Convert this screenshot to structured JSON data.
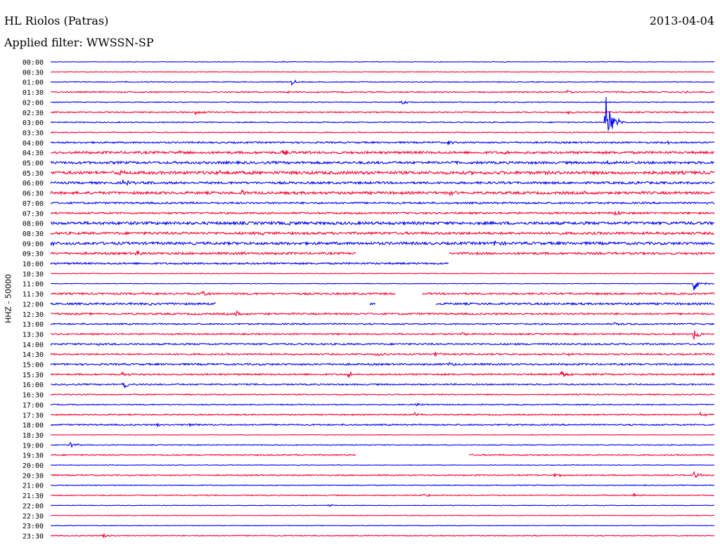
{
  "header": {
    "station": "HL Riolos (Patras)",
    "date": "2013-04-04",
    "filter": "Applied filter: WWSSN-SP",
    "channel_label": "HHZ - 50000"
  },
  "colors": {
    "even_rows": "#0000ff",
    "odd_rows": "#ff0033",
    "background": "#ffffff"
  },
  "chart_data": {
    "type": "line",
    "subtype": "helicorder",
    "row_labels": [
      "00:00",
      "00:30",
      "01:00",
      "01:30",
      "02:00",
      "02:30",
      "03:00",
      "03:30",
      "04:00",
      "04:30",
      "05:00",
      "05:30",
      "06:00",
      "06:30",
      "07:00",
      "07:30",
      "08:00",
      "08:30",
      "09:00",
      "09:30",
      "10:00",
      "10:30",
      "11:00",
      "11:30",
      "12:00",
      "12:30",
      "13:00",
      "13:30",
      "14:00",
      "14:30",
      "15:00",
      "15:30",
      "16:00",
      "16:30",
      "17:00",
      "17:30",
      "18:00",
      "18:30",
      "19:00",
      "19:30",
      "20:00",
      "20:30",
      "21:00",
      "21:30",
      "22:00",
      "22:30",
      "23:00",
      "23:30"
    ],
    "row_colors": [
      "blue",
      "red"
    ],
    "noise_level": [
      0.3,
      0.3,
      0.4,
      0.6,
      0.4,
      0.6,
      0.5,
      0.5,
      0.8,
      1.2,
      1.2,
      1.5,
      1.1,
      1.3,
      0.9,
      0.9,
      1.4,
      1.2,
      1.3,
      1.1,
      0.9,
      0.0,
      0.0,
      0.9,
      1.0,
      0.9,
      0.7,
      0.7,
      0.8,
      0.8,
      0.9,
      0.8,
      0.7,
      0.6,
      0.5,
      0.6,
      0.7,
      0.3,
      0.4,
      0.6,
      0.3,
      0.6,
      0.4,
      0.5,
      0.3,
      0.3,
      0.3,
      0.5
    ],
    "events": [
      {
        "row": 0,
        "pos": 0.35,
        "amp": 1.0
      },
      {
        "row": 0,
        "pos": 0.68,
        "amp": 0.8
      },
      {
        "row": 2,
        "pos": 0.364,
        "amp": 4.0
      },
      {
        "row": 2,
        "pos": 0.11,
        "amp": 0.6
      },
      {
        "row": 3,
        "pos": 0.36,
        "amp": 1.0
      },
      {
        "row": 3,
        "pos": 0.78,
        "amp": 2.5
      },
      {
        "row": 3,
        "pos": 0.95,
        "amp": 1.5
      },
      {
        "row": 4,
        "pos": 0.53,
        "amp": 3.0
      },
      {
        "row": 5,
        "pos": 0.22,
        "amp": 3.0
      },
      {
        "row": 5,
        "pos": 0.78,
        "amp": 2.5
      },
      {
        "row": 6,
        "pos": 0.836,
        "amp": 45.0
      },
      {
        "row": 8,
        "pos": 0.6,
        "amp": 2.0
      },
      {
        "row": 8,
        "pos": 0.93,
        "amp": 2.5
      },
      {
        "row": 9,
        "pos": 0.19,
        "amp": 2.5
      },
      {
        "row": 9,
        "pos": 0.35,
        "amp": 3.5
      },
      {
        "row": 9,
        "pos": 0.68,
        "amp": 2.0
      },
      {
        "row": 10,
        "pos": 0.6,
        "amp": 2.0
      },
      {
        "row": 10,
        "pos": 0.84,
        "amp": 3.0
      },
      {
        "row": 11,
        "pos": 0.1,
        "amp": 4.0
      },
      {
        "row": 11,
        "pos": 0.25,
        "amp": 3.0
      },
      {
        "row": 12,
        "pos": 0.11,
        "amp": 3.5
      },
      {
        "row": 12,
        "pos": 0.88,
        "amp": 2.0
      },
      {
        "row": 13,
        "pos": 0.29,
        "amp": 3.0
      },
      {
        "row": 13,
        "pos": 0.6,
        "amp": 2.5
      },
      {
        "row": 13,
        "pos": 0.8,
        "amp": 2.5
      },
      {
        "row": 15,
        "pos": 0.85,
        "amp": 4.0
      },
      {
        "row": 16,
        "pos": 0.36,
        "amp": 3.0
      },
      {
        "row": 17,
        "pos": 0.32,
        "amp": 2.5
      },
      {
        "row": 18,
        "pos": 0.0,
        "amp": 3.0
      },
      {
        "row": 18,
        "pos": 0.67,
        "amp": 3.0
      },
      {
        "row": 19,
        "pos": 0.56,
        "amp": 6.0
      },
      {
        "row": 19,
        "pos": 0.13,
        "amp": 2.5
      },
      {
        "row": 19,
        "pos": 0.29,
        "amp": 2.0
      },
      {
        "row": 22,
        "pos": 0.97,
        "amp": 10.0
      },
      {
        "row": 23,
        "pos": 0.14,
        "amp": 2.0
      },
      {
        "row": 23,
        "pos": 0.23,
        "amp": 3.0
      },
      {
        "row": 24,
        "pos": 0.15,
        "amp": 3.0
      },
      {
        "row": 24,
        "pos": 0.46,
        "amp": 2.0
      },
      {
        "row": 25,
        "pos": 0.28,
        "amp": 3.5
      },
      {
        "row": 26,
        "pos": 0.85,
        "amp": 2.0
      },
      {
        "row": 27,
        "pos": 0.62,
        "amp": 2.5
      },
      {
        "row": 27,
        "pos": 0.97,
        "amp": 8.0
      },
      {
        "row": 28,
        "pos": 0.07,
        "amp": 2.0
      },
      {
        "row": 29,
        "pos": 0.49,
        "amp": 3.5
      },
      {
        "row": 29,
        "pos": 0.58,
        "amp": 2.5
      },
      {
        "row": 29,
        "pos": 0.77,
        "amp": 3.0
      },
      {
        "row": 30,
        "pos": 0.6,
        "amp": 3.0
      },
      {
        "row": 31,
        "pos": 0.11,
        "amp": 3.0
      },
      {
        "row": 31,
        "pos": 0.45,
        "amp": 3.0
      },
      {
        "row": 31,
        "pos": 0.77,
        "amp": 5.0
      },
      {
        "row": 32,
        "pos": 0.11,
        "amp": 6.0
      },
      {
        "row": 34,
        "pos": 0.55,
        "amp": 2.0
      },
      {
        "row": 35,
        "pos": 0.55,
        "amp": 2.5
      },
      {
        "row": 35,
        "pos": 0.98,
        "amp": 2.5
      },
      {
        "row": 36,
        "pos": 0.16,
        "amp": 2.5
      },
      {
        "row": 36,
        "pos": 0.21,
        "amp": 2.5
      },
      {
        "row": 38,
        "pos": 0.03,
        "amp": 4.0
      },
      {
        "row": 41,
        "pos": 0.76,
        "amp": 2.5
      },
      {
        "row": 41,
        "pos": 0.97,
        "amp": 4.0
      },
      {
        "row": 43,
        "pos": 0.56,
        "amp": 2.5
      },
      {
        "row": 43,
        "pos": 0.88,
        "amp": 2.0
      },
      {
        "row": 44,
        "pos": 0.42,
        "amp": 1.5
      },
      {
        "row": 47,
        "pos": 0.08,
        "amp": 3.5
      }
    ],
    "gaps": [
      {
        "row": 19,
        "start": 0.46,
        "end": 0.6
      },
      {
        "row": 20,
        "start": 0.6,
        "end": 1.0
      },
      {
        "row": 23,
        "start": 0.52,
        "end": 0.56
      },
      {
        "row": 24,
        "start": 0.25,
        "end": 0.48
      },
      {
        "row": 24,
        "start": 0.49,
        "end": 0.58
      },
      {
        "row": 39,
        "start": 0.46,
        "end": 0.63
      }
    ]
  }
}
